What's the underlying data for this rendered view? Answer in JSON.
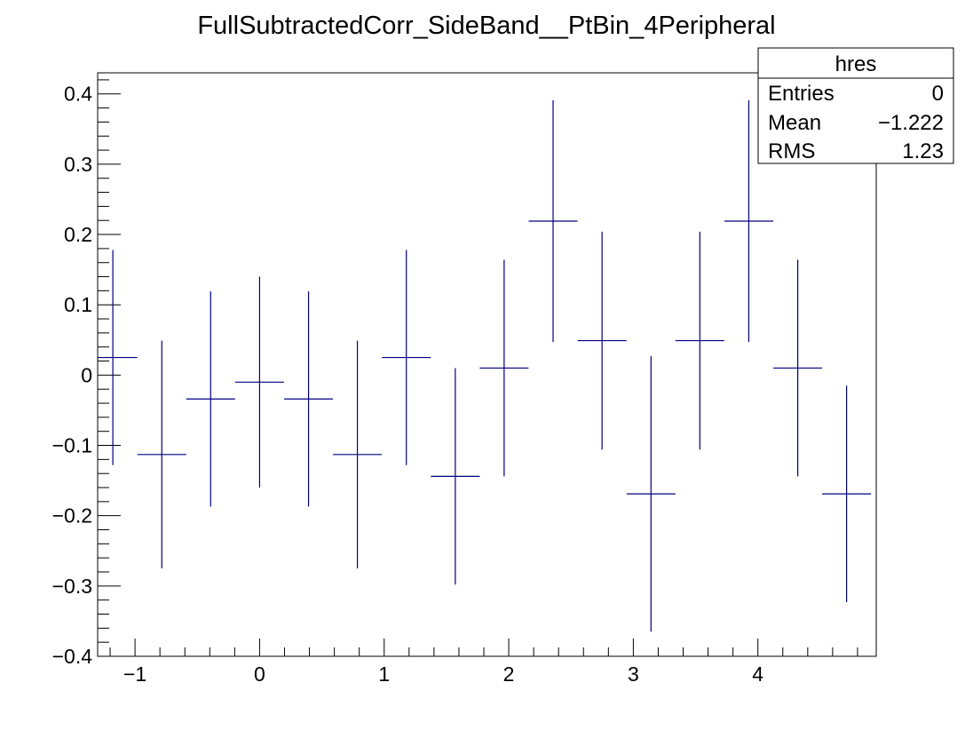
{
  "chart_data": {
    "type": "scatter",
    "title": "FullSubtractedCorr_SideBand__PtBin_4Peripheral",
    "xlabel": "",
    "ylabel": "",
    "xlim": [
      -1.3,
      4.95
    ],
    "ylim": [
      -0.4,
      0.43
    ],
    "x_ticks": [
      {
        "value": -1,
        "label": "−1"
      },
      {
        "value": 0,
        "label": "0"
      },
      {
        "value": 1,
        "label": "1"
      },
      {
        "value": 2,
        "label": "2"
      },
      {
        "value": 3,
        "label": "3"
      },
      {
        "value": 4,
        "label": "4"
      }
    ],
    "y_ticks": [
      {
        "value": 0.4,
        "label": "0.4"
      },
      {
        "value": 0.3,
        "label": "0.3"
      },
      {
        "value": 0.2,
        "label": "0.2"
      },
      {
        "value": 0.1,
        "label": "0.1"
      },
      {
        "value": 0,
        "label": "0"
      },
      {
        "value": -0.1,
        "label": "−0.1"
      },
      {
        "value": -0.2,
        "label": "−0.2"
      },
      {
        "value": -0.3,
        "label": "−0.3"
      },
      {
        "value": -0.4,
        "label": "−0.4"
      }
    ],
    "grid": false,
    "series_color": "#000080",
    "points": [
      {
        "x": -1.178,
        "y": 0.025,
        "xerr": 0.196,
        "yerr": 0.153
      },
      {
        "x": -0.785,
        "y": -0.113,
        "xerr": 0.196,
        "yerr": 0.162
      },
      {
        "x": -0.393,
        "y": -0.034,
        "xerr": 0.196,
        "yerr": 0.153
      },
      {
        "x": 0.0,
        "y": -0.01,
        "xerr": 0.196,
        "yerr": 0.15
      },
      {
        "x": 0.393,
        "y": -0.034,
        "xerr": 0.196,
        "yerr": 0.153
      },
      {
        "x": 0.785,
        "y": -0.113,
        "xerr": 0.196,
        "yerr": 0.162
      },
      {
        "x": 1.178,
        "y": 0.025,
        "xerr": 0.196,
        "yerr": 0.153
      },
      {
        "x": 1.571,
        "y": -0.144,
        "xerr": 0.196,
        "yerr": 0.154
      },
      {
        "x": 1.963,
        "y": 0.01,
        "xerr": 0.196,
        "yerr": 0.154
      },
      {
        "x": 2.356,
        "y": 0.219,
        "xerr": 0.196,
        "yerr": 0.172
      },
      {
        "x": 2.749,
        "y": 0.049,
        "xerr": 0.196,
        "yerr": 0.155
      },
      {
        "x": 3.142,
        "y": -0.169,
        "xerr": 0.196,
        "yerr": 0.196
      },
      {
        "x": 3.534,
        "y": 0.049,
        "xerr": 0.196,
        "yerr": 0.155
      },
      {
        "x": 3.927,
        "y": 0.219,
        "xerr": 0.196,
        "yerr": 0.172
      },
      {
        "x": 4.32,
        "y": 0.01,
        "xerr": 0.196,
        "yerr": 0.154
      },
      {
        "x": 4.712,
        "y": -0.169,
        "xerr": 0.196,
        "yerr": 0.154
      }
    ]
  },
  "stats_box": {
    "name": "hres",
    "rows": [
      {
        "label": "Entries",
        "value": "0"
      },
      {
        "label": "Mean",
        "value": "−1.222"
      },
      {
        "label": "RMS",
        "value": "1.23"
      }
    ]
  }
}
